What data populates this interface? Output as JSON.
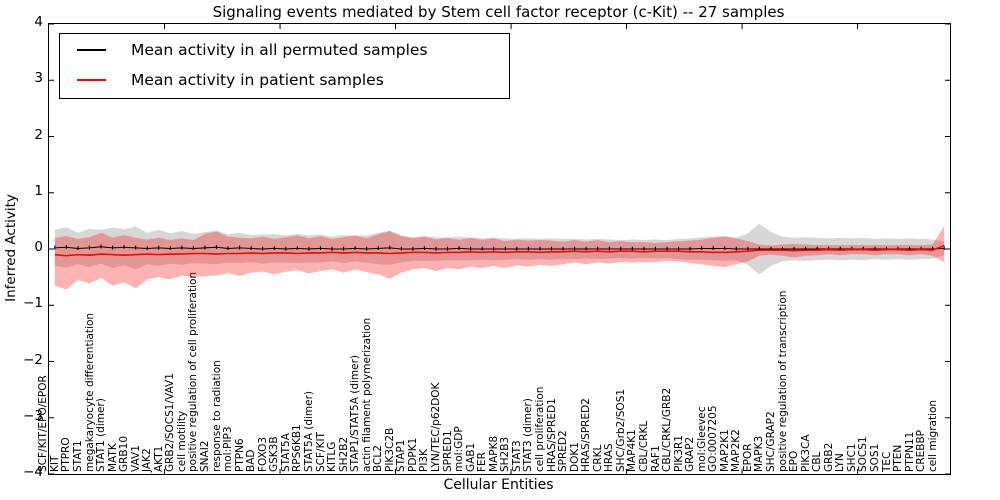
{
  "title": "Signaling events mediated by Stem cell factor receptor (c-Kit) -- 27 samples",
  "xlabel": "Cellular Entities",
  "ylabel": "Inferred Activity",
  "legend": [
    {
      "label": "Mean activity in all permuted samples",
      "color": "#000000"
    },
    {
      "label": "Mean activity in patient samples",
      "color": "#ff0000"
    }
  ],
  "y_ticks": [
    4,
    3,
    2,
    1,
    0,
    -1,
    -2,
    -3,
    -4
  ],
  "colors": {
    "permuted_line": "#000000",
    "patient_line": "#ff0000",
    "permuted_band": "#b0b0b0",
    "patient_band": "#ff0000",
    "frame": "#000000",
    "background": "#ffffff"
  },
  "chart_data": {
    "type": "line",
    "title": "Signaling events mediated by Stem cell factor receptor (c-Kit) -- 27 samples",
    "xlabel": "Cellular Entities",
    "ylabel": "Inferred Activity",
    "ylim": [
      -4,
      4
    ],
    "grid": false,
    "legend_position": "upper left",
    "categories": [
      "SCF/KIT/EPO/EPOR",
      "KIT",
      "PTPRO",
      "STAT1",
      "megakaryocyte differentiation",
      "STAT1 (dimer)",
      "MATK",
      "GRB10",
      "VAV1",
      "JAK2",
      "AKT1",
      "GRB2/SOCS1/VAV1",
      "cell motility",
      "positive regulation of cell proliferation",
      "SNAI2",
      "response to radiation",
      "mol:PIP3",
      "PTPN6",
      "BAD",
      "FOXO3",
      "GSK3B",
      "STAT5A",
      "RPS6KB1",
      "STAT5A (dimer)",
      "SCF/KIT",
      "KITLG",
      "SH2B2",
      "STAP1/STAT5A (dimer)",
      "actin filament polymerization",
      "BCL2",
      "PIK3C2B",
      "STAP1",
      "PDPK1",
      "PI3K",
      "LYN/TEC/p62DOK",
      "SPRED1",
      "mol:GDP",
      "GAB1",
      "FER",
      "MAPK8",
      "SH2B3",
      "STAT3",
      "STAT3 (dimer)",
      "cell proliferation",
      "HRAS/SPRED1",
      "SPRED2",
      "DOK1",
      "HRAS/SPRED2",
      "CRKL",
      "HRAS",
      "SHC/Grb2/SOS1",
      "MAP4K1",
      "CBL/CRKL",
      "RAF1",
      "CBL/CRKL/GRB2",
      "PIK3R1",
      "GRAP2",
      "mol:Gleevec",
      "GO:0007205",
      "MAP2K1",
      "MAP2K2",
      "EPOR",
      "MAPK3",
      "SHC/GRAP2",
      "positive regulation of transcription",
      "EPO",
      "PIK3CA",
      "CBL",
      "GRB2",
      "LYN",
      "SHC1",
      "SOCS1",
      "SOS1",
      "TEC",
      "PTEN",
      "PTPN11",
      "CREBBP",
      "cell migration"
    ],
    "series": [
      {
        "name": "Mean activity in all permuted samples",
        "color": "#000000",
        "values": [
          0.02,
          0.03,
          0.01,
          0.02,
          0.04,
          0.02,
          0.03,
          0.02,
          0.01,
          0.02,
          0.01,
          0.02,
          0.01,
          0.02,
          0.03,
          0.01,
          0.02,
          0.01,
          0.0,
          0.01,
          0.0,
          0.01,
          0.0,
          0.01,
          0.0,
          0.0,
          0.01,
          0.0,
          0.01,
          0.02,
          0.0,
          0.0,
          0.01,
          0.0,
          0.0,
          0.01,
          0.0,
          0.0,
          0.0,
          0.0,
          0.0,
          0.0,
          0.0,
          0.0,
          0.0,
          0.0,
          0.0,
          0.0,
          0.0,
          0.0,
          0.0,
          0.0,
          0.0,
          0.0,
          0.0,
          0.0,
          0.01,
          0.01,
          0.01,
          0.0,
          0.0,
          0.0,
          0.0,
          0.0,
          0.0,
          0.0,
          0.0,
          0.0,
          0.0,
          0.0,
          0.0,
          0.0,
          0.0,
          0.0,
          0.0,
          0.0,
          0.0,
          0.01
        ]
      },
      {
        "name": "Mean activity in patient samples",
        "color": "#ff0000",
        "values": [
          -0.1,
          -0.12,
          -0.1,
          -0.11,
          -0.09,
          -0.1,
          -0.11,
          -0.1,
          -0.09,
          -0.1,
          -0.09,
          -0.09,
          -0.08,
          -0.08,
          -0.09,
          -0.08,
          -0.08,
          -0.07,
          -0.08,
          -0.07,
          -0.07,
          -0.08,
          -0.07,
          -0.07,
          -0.06,
          -0.07,
          -0.06,
          -0.07,
          -0.07,
          -0.08,
          -0.07,
          -0.06,
          -0.06,
          -0.07,
          -0.06,
          -0.06,
          -0.05,
          -0.06,
          -0.05,
          -0.06,
          -0.05,
          -0.05,
          -0.06,
          -0.05,
          -0.05,
          -0.04,
          -0.05,
          -0.04,
          -0.05,
          -0.04,
          -0.04,
          -0.05,
          -0.04,
          -0.04,
          -0.04,
          -0.05,
          -0.05,
          -0.06,
          -0.06,
          -0.05,
          -0.04,
          -0.02,
          -0.02,
          -0.02,
          -0.03,
          -0.02,
          -0.02,
          -0.01,
          -0.02,
          -0.01,
          -0.01,
          -0.02,
          -0.01,
          -0.01,
          -0.02,
          -0.01,
          -0.02,
          0.06
        ]
      }
    ],
    "bands": [
      {
        "name": "permuted-samples-std-band",
        "color": "#b0b0b0",
        "opacity": 0.5,
        "upper": [
          0.34,
          0.39,
          0.29,
          0.36,
          0.34,
          0.38,
          0.35,
          0.4,
          0.29,
          0.34,
          0.28,
          0.32,
          0.27,
          0.3,
          0.33,
          0.26,
          0.29,
          0.25,
          0.26,
          0.26,
          0.24,
          0.27,
          0.24,
          0.26,
          0.22,
          0.25,
          0.24,
          0.24,
          0.29,
          0.32,
          0.24,
          0.21,
          0.23,
          0.21,
          0.2,
          0.22,
          0.2,
          0.19,
          0.2,
          0.19,
          0.18,
          0.19,
          0.18,
          0.19,
          0.18,
          0.18,
          0.17,
          0.18,
          0.17,
          0.16,
          0.17,
          0.16,
          0.17,
          0.16,
          0.18,
          0.19,
          0.21,
          0.22,
          0.23,
          0.2,
          0.28,
          0.45,
          0.3,
          0.22,
          0.2,
          0.21,
          0.2,
          0.19,
          0.2,
          0.19,
          0.2,
          0.18,
          0.19,
          0.18,
          0.19,
          0.18,
          0.17,
          0.13
        ],
        "lower": [
          -0.3,
          -0.33,
          -0.27,
          -0.32,
          -0.26,
          -0.34,
          -0.29,
          -0.36,
          -0.27,
          -0.3,
          -0.26,
          -0.28,
          -0.25,
          -0.26,
          -0.27,
          -0.24,
          -0.25,
          -0.23,
          -0.26,
          -0.24,
          -0.24,
          -0.25,
          -0.24,
          -0.24,
          -0.22,
          -0.25,
          -0.22,
          -0.24,
          -0.27,
          -0.28,
          -0.24,
          -0.21,
          -0.21,
          -0.21,
          -0.2,
          -0.2,
          -0.2,
          -0.19,
          -0.2,
          -0.19,
          -0.18,
          -0.19,
          -0.18,
          -0.19,
          -0.18,
          -0.18,
          -0.17,
          -0.18,
          -0.17,
          -0.16,
          -0.17,
          -0.16,
          -0.17,
          -0.16,
          -0.18,
          -0.19,
          -0.19,
          -0.2,
          -0.21,
          -0.2,
          -0.28,
          -0.45,
          -0.3,
          -0.22,
          -0.2,
          -0.21,
          -0.2,
          -0.19,
          -0.2,
          -0.19,
          -0.2,
          -0.18,
          -0.19,
          -0.18,
          -0.19,
          -0.18,
          -0.17,
          -0.11
        ]
      },
      {
        "name": "patient-samples-std-band",
        "color": "#ff0000",
        "opacity": 0.3,
        "upper": [
          0.2,
          0.23,
          0.18,
          0.21,
          0.29,
          0.2,
          0.25,
          0.2,
          0.17,
          0.2,
          0.16,
          0.19,
          0.16,
          0.27,
          0.31,
          0.22,
          0.2,
          0.19,
          0.22,
          0.18,
          0.21,
          0.24,
          0.19,
          0.23,
          0.18,
          0.21,
          0.24,
          0.19,
          0.26,
          0.32,
          0.23,
          0.19,
          0.22,
          0.17,
          0.2,
          0.16,
          0.2,
          0.16,
          0.19,
          0.14,
          0.17,
          0.15,
          0.16,
          0.15,
          0.13,
          0.16,
          0.13,
          0.16,
          0.12,
          0.14,
          0.12,
          0.12,
          0.11,
          0.12,
          0.14,
          0.15,
          0.17,
          0.2,
          0.22,
          0.19,
          0.14,
          0.08,
          0.06,
          0.08,
          0.09,
          0.08,
          0.07,
          0.07,
          0.07,
          0.07,
          0.07,
          0.07,
          0.07,
          0.07,
          0.07,
          0.07,
          0.08,
          0.41
        ],
        "lower": [
          -0.65,
          -0.72,
          -0.55,
          -0.61,
          -0.51,
          -0.65,
          -0.59,
          -0.7,
          -0.54,
          -0.5,
          -0.54,
          -0.47,
          -0.5,
          -0.48,
          -0.47,
          -0.43,
          -0.48,
          -0.42,
          -0.4,
          -0.45,
          -0.4,
          -0.38,
          -0.43,
          -0.39,
          -0.36,
          -0.42,
          -0.36,
          -0.41,
          -0.45,
          -0.53,
          -0.42,
          -0.36,
          -0.34,
          -0.39,
          -0.34,
          -0.36,
          -0.31,
          -0.34,
          -0.3,
          -0.34,
          -0.29,
          -0.31,
          -0.28,
          -0.3,
          -0.27,
          -0.24,
          -0.27,
          -0.24,
          -0.26,
          -0.23,
          -0.24,
          -0.23,
          -0.23,
          -0.21,
          -0.22,
          -0.25,
          -0.27,
          -0.3,
          -0.32,
          -0.27,
          -0.22,
          -0.12,
          -0.1,
          -0.12,
          -0.15,
          -0.12,
          -0.11,
          -0.09,
          -0.11,
          -0.09,
          -0.09,
          -0.11,
          -0.09,
          -0.09,
          -0.11,
          -0.09,
          -0.12,
          -0.24
        ]
      }
    ]
  }
}
